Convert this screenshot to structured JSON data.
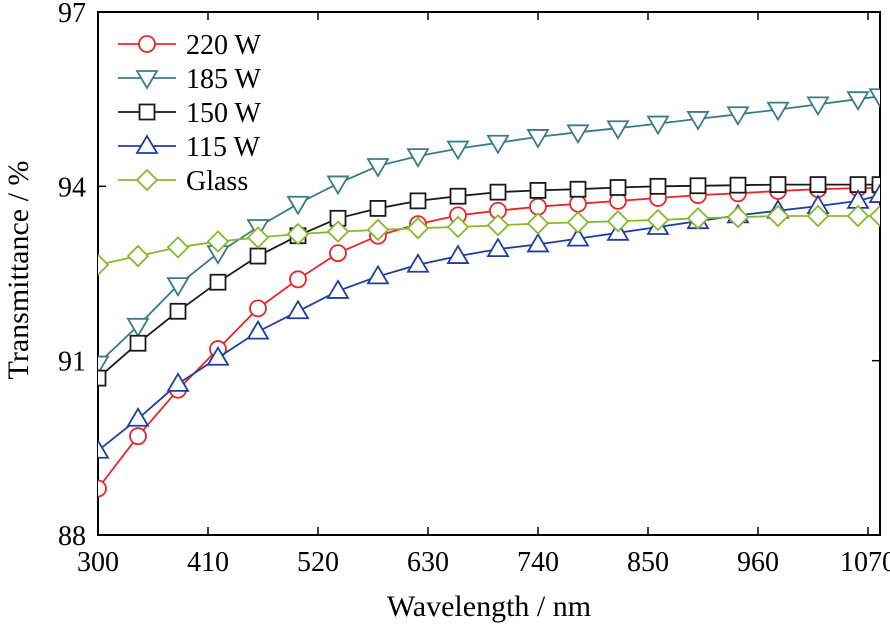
{
  "chart_data": {
    "type": "line",
    "xlabel": "Wavelength / nm",
    "ylabel": "Transmittance / %",
    "xlim": [
      300,
      1082
    ],
    "ylim": [
      88,
      97
    ],
    "xticks": [
      300,
      410,
      520,
      630,
      740,
      850,
      960,
      1070
    ],
    "yticks": [
      88,
      91,
      94,
      97
    ],
    "legend_position": "top-left",
    "grid": false,
    "series": [
      {
        "name": "220 W",
        "color": "#e8262a",
        "marker": "circle",
        "x": [
          300,
          340,
          380,
          420,
          460,
          500,
          540,
          580,
          620,
          660,
          700,
          740,
          780,
          820,
          860,
          900,
          940,
          980,
          1020,
          1060,
          1082
        ],
        "y": [
          88.8,
          89.7,
          90.5,
          91.2,
          91.9,
          92.4,
          92.85,
          93.15,
          93.35,
          93.5,
          93.58,
          93.65,
          93.7,
          93.75,
          93.8,
          93.85,
          93.88,
          93.92,
          93.95,
          93.97,
          93.97
        ]
      },
      {
        "name": "185 W",
        "color": "#3a7c86",
        "marker": "triangle-down",
        "x": [
          300,
          340,
          380,
          420,
          460,
          500,
          540,
          580,
          620,
          660,
          700,
          740,
          780,
          820,
          860,
          900,
          940,
          980,
          1020,
          1060,
          1082
        ],
        "y": [
          90.95,
          91.6,
          92.3,
          92.85,
          93.3,
          93.7,
          94.05,
          94.35,
          94.52,
          94.65,
          94.75,
          94.85,
          94.93,
          95.0,
          95.08,
          95.16,
          95.24,
          95.32,
          95.41,
          95.5,
          95.55
        ]
      },
      {
        "name": "150 W",
        "color": "#1a1a1a",
        "marker": "square",
        "x": [
          300,
          340,
          380,
          420,
          460,
          500,
          540,
          580,
          620,
          660,
          700,
          740,
          780,
          820,
          860,
          900,
          940,
          980,
          1020,
          1060,
          1082
        ],
        "y": [
          90.7,
          91.3,
          91.85,
          92.35,
          92.8,
          93.15,
          93.45,
          93.62,
          93.75,
          93.83,
          93.9,
          93.93,
          93.95,
          93.98,
          94.0,
          94.01,
          94.02,
          94.03,
          94.03,
          94.03,
          94.03
        ]
      },
      {
        "name": "115 W",
        "color": "#1f3fa0",
        "marker": "triangle-up",
        "x": [
          300,
          340,
          380,
          420,
          460,
          500,
          540,
          580,
          620,
          660,
          700,
          740,
          780,
          820,
          860,
          900,
          940,
          980,
          1020,
          1060,
          1082
        ],
        "y": [
          89.45,
          90.0,
          90.6,
          91.05,
          91.5,
          91.85,
          92.2,
          92.45,
          92.65,
          92.8,
          92.92,
          93.0,
          93.1,
          93.2,
          93.3,
          93.4,
          93.5,
          93.58,
          93.66,
          93.75,
          93.85
        ]
      },
      {
        "name": "Glass",
        "color": "#86b92e",
        "marker": "diamond",
        "x": [
          300,
          340,
          380,
          420,
          460,
          500,
          540,
          580,
          620,
          660,
          700,
          740,
          780,
          820,
          860,
          900,
          940,
          980,
          1020,
          1060,
          1082
        ],
        "y": [
          92.65,
          92.8,
          92.95,
          93.05,
          93.12,
          93.18,
          93.22,
          93.25,
          93.28,
          93.3,
          93.33,
          93.36,
          93.38,
          93.4,
          93.42,
          93.45,
          93.47,
          93.49,
          93.49,
          93.49,
          93.49
        ]
      }
    ]
  }
}
